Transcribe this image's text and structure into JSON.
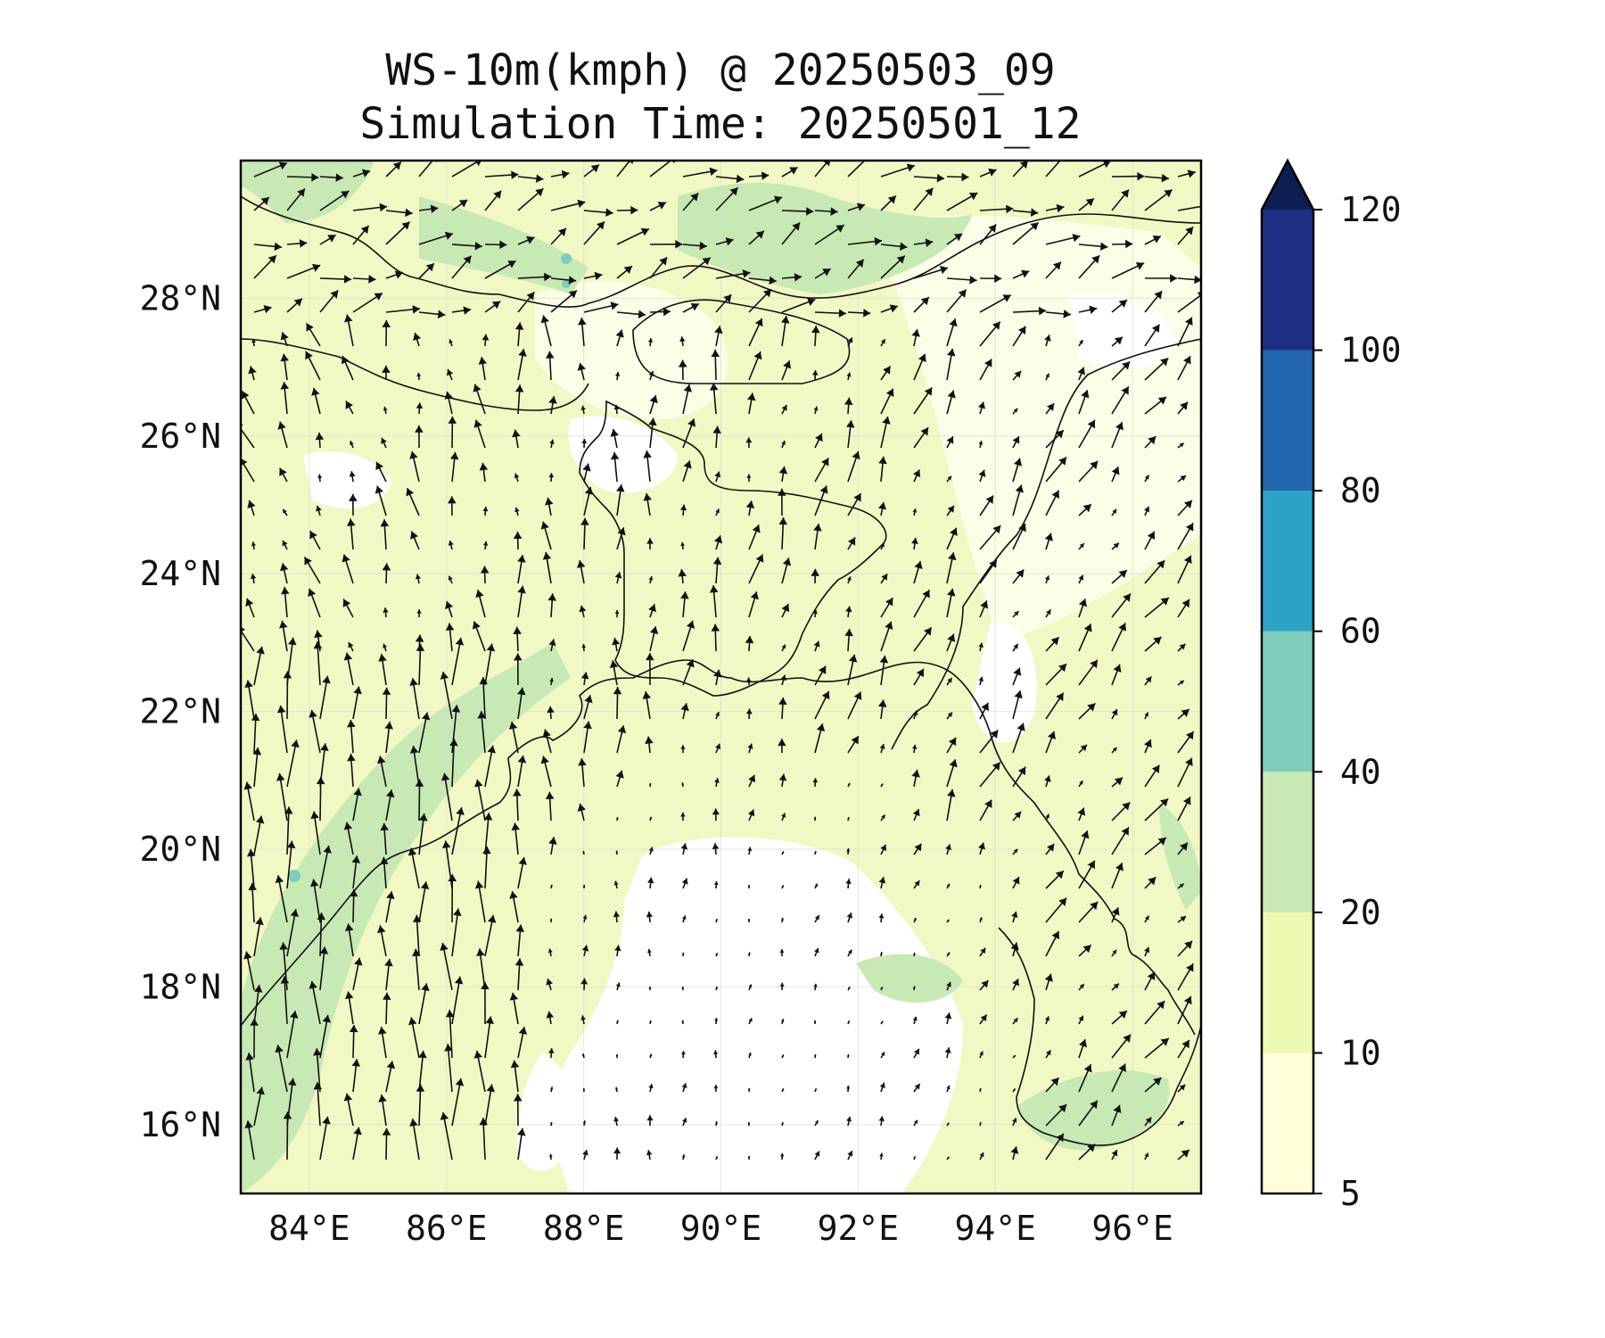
{
  "title": {
    "line1": "WS-10m(kmph) @ 20250503_09",
    "line2": "Simulation Time: 20250501_12"
  },
  "map": {
    "region": "Bay of Bengal",
    "lon_range": [
      83.0,
      97.0
    ],
    "lat_range": [
      15.0,
      30.0
    ],
    "x_ticks": [
      {
        "value": 84,
        "label": "84°E"
      },
      {
        "value": 86,
        "label": "86°E"
      },
      {
        "value": 88,
        "label": "88°E"
      },
      {
        "value": 90,
        "label": "90°E"
      },
      {
        "value": 92,
        "label": "92°E"
      },
      {
        "value": 94,
        "label": "94°E"
      },
      {
        "value": 96,
        "label": "96°E"
      }
    ],
    "y_ticks": [
      {
        "value": 16,
        "label": "16°N"
      },
      {
        "value": 18,
        "label": "18°N"
      },
      {
        "value": 20,
        "label": "20°N"
      },
      {
        "value": 22,
        "label": "22°N"
      },
      {
        "value": 24,
        "label": "24°N"
      },
      {
        "value": 26,
        "label": "26°N"
      },
      {
        "value": 28,
        "label": "28°N"
      }
    ],
    "gridlines": true,
    "field": "10 m wind speed (shaded) with wind vectors"
  },
  "colorbar": {
    "levels": [
      {
        "value": 5,
        "label": "5"
      },
      {
        "value": 10,
        "label": "10"
      },
      {
        "value": 20,
        "label": "20"
      },
      {
        "value": 40,
        "label": "40"
      },
      {
        "value": 60,
        "label": "60"
      },
      {
        "value": 80,
        "label": "80"
      },
      {
        "value": 100,
        "label": "100"
      },
      {
        "value": 120,
        "label": "120"
      }
    ],
    "colors": [
      "#ffffd9",
      "#edf8b1",
      "#c7e9b4",
      "#7fcdbb",
      "#2ca3c4",
      "#2166ac",
      "#1f2e85"
    ],
    "extend_color": "#0d1f52",
    "extend": "max"
  }
}
